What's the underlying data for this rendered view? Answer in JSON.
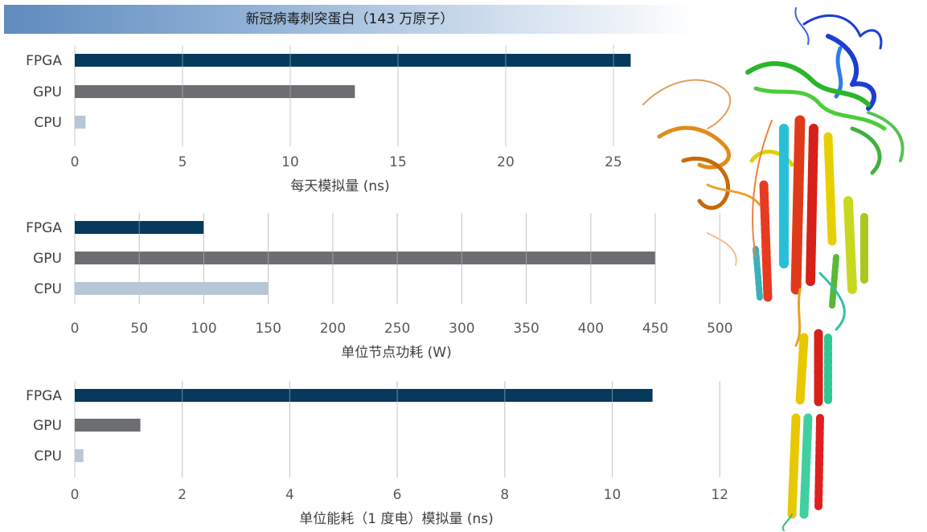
{
  "title": "新冠病毒刺突蛋白（143 万原子）",
  "colors": {
    "FPGA": "#063a5c",
    "GPU": "#6d6e71",
    "CPU": "#b7c7d6",
    "grid": "#c8c8c8"
  },
  "chart_data": [
    {
      "type": "bar",
      "orientation": "horizontal",
      "categories": [
        "FPGA",
        "GPU",
        "CPU"
      ],
      "values": [
        25.8,
        13.0,
        0.5
      ],
      "xlabel": "每天模拟量 (ns)",
      "xticks": [
        0,
        5,
        10,
        15,
        20,
        25
      ],
      "xlim": [
        0,
        26
      ],
      "grid": true
    },
    {
      "type": "bar",
      "orientation": "horizontal",
      "categories": [
        "FPGA",
        "GPU",
        "CPU"
      ],
      "values": [
        100,
        450,
        150
      ],
      "xlabel": "单位节点功耗 (W)",
      "xticks": [
        0,
        50,
        100,
        150,
        200,
        250,
        300,
        350,
        400,
        450,
        500
      ],
      "xlim": [
        0,
        500
      ],
      "grid": true
    },
    {
      "type": "bar",
      "orientation": "horizontal",
      "categories": [
        "FPGA",
        "GPU",
        "CPU"
      ],
      "values": [
        10.75,
        1.22,
        0.16
      ],
      "xlabel": "单位能耗（1 度电）模拟量 (ns)",
      "xticks": [
        0,
        2,
        4,
        6,
        8,
        10,
        12
      ],
      "xlim": [
        0,
        12
      ],
      "grid": true
    }
  ],
  "image": {
    "description_icon": "spike-protein-ribbon-structure"
  }
}
